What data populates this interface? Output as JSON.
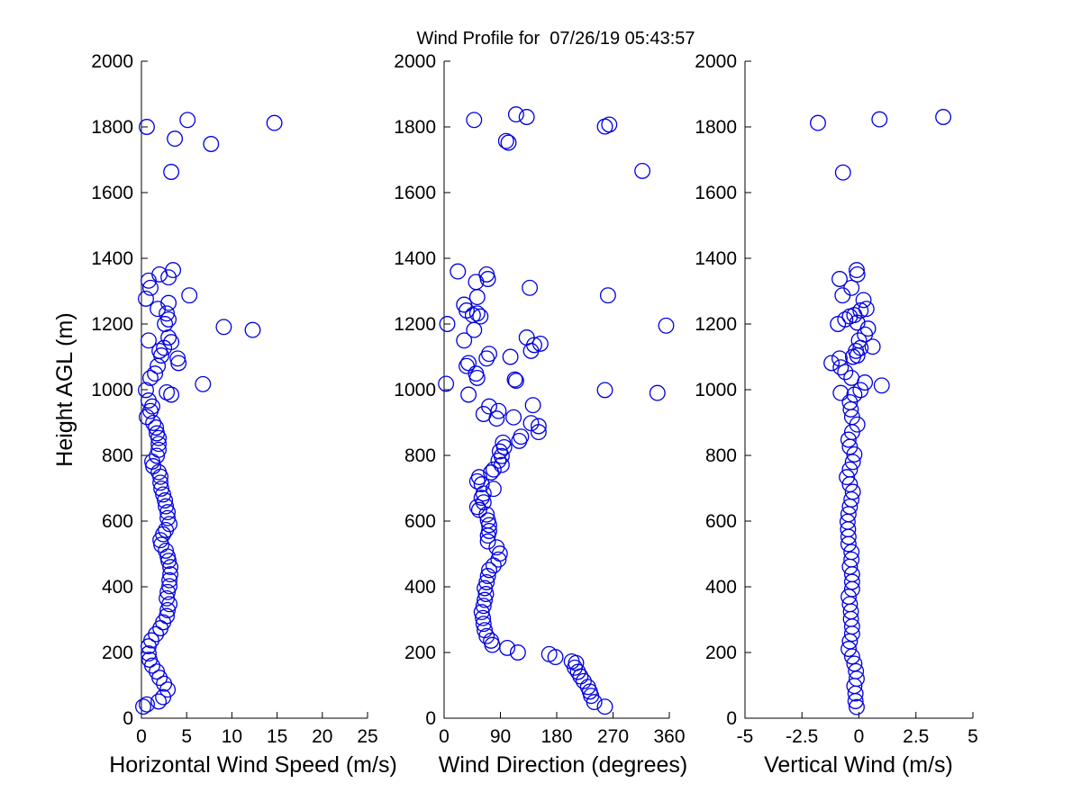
{
  "chart_data": {
    "type": "scatter",
    "title": "Wind Profile for  07/26/19 05:43:57",
    "ylabel": "Height AGL (m)",
    "ylim": [
      0,
      2000
    ],
    "yticks": [
      0,
      200,
      400,
      600,
      800,
      1000,
      1200,
      1400,
      1600,
      1800,
      2000
    ],
    "grid": false,
    "legend": "none",
    "marker": {
      "shape": "open-circle",
      "color": "#0000e0",
      "radius": 8.3
    },
    "panels": [
      {
        "xlabel": "Horizontal Wind Speed (m/s)",
        "xlim": [
          0,
          25
        ],
        "xticks": [
          0,
          5,
          10,
          15,
          20,
          25
        ],
        "points": [
          [
            0.2,
            35
          ],
          [
            0.6,
            42
          ],
          [
            1.9,
            51
          ],
          [
            2.4,
            64
          ],
          [
            2.9,
            87
          ],
          [
            2.5,
            105
          ],
          [
            2.0,
            123
          ],
          [
            1.7,
            142
          ],
          [
            1.2,
            160
          ],
          [
            0.9,
            178
          ],
          [
            0.8,
            197
          ],
          [
            0.8,
            219
          ],
          [
            1.1,
            237
          ],
          [
            1.6,
            256
          ],
          [
            2.1,
            274
          ],
          [
            2.4,
            292
          ],
          [
            2.8,
            311
          ],
          [
            2.9,
            329
          ],
          [
            3.1,
            347
          ],
          [
            2.8,
            365
          ],
          [
            2.9,
            384
          ],
          [
            3.1,
            402
          ],
          [
            3.1,
            420
          ],
          [
            3.2,
            438
          ],
          [
            3.2,
            460
          ],
          [
            3.0,
            479
          ],
          [
            2.9,
            492
          ],
          [
            2.7,
            510
          ],
          [
            2.2,
            528
          ],
          [
            2.1,
            542
          ],
          [
            2.4,
            560
          ],
          [
            2.7,
            573
          ],
          [
            3.1,
            591
          ],
          [
            2.9,
            609
          ],
          [
            2.9,
            627
          ],
          [
            2.7,
            645
          ],
          [
            2.6,
            663
          ],
          [
            2.4,
            681
          ],
          [
            2.2,
            699
          ],
          [
            2.1,
            717
          ],
          [
            2.1,
            735
          ],
          [
            1.9,
            749
          ],
          [
            1.3,
            767
          ],
          [
            1.2,
            781
          ],
          [
            1.7,
            799
          ],
          [
            1.9,
            817
          ],
          [
            1.9,
            835
          ],
          [
            1.9,
            853
          ],
          [
            1.7,
            867
          ],
          [
            1.6,
            885
          ],
          [
            1.3,
            899
          ],
          [
            0.6,
            917
          ],
          [
            1.0,
            935
          ],
          [
            1.2,
            949
          ],
          [
            0.8,
            967
          ],
          [
            3.3,
            985
          ],
          [
            2.8,
            992
          ],
          [
            0.5,
            999
          ],
          [
            6.8,
            1017
          ],
          [
            1.0,
            1036
          ],
          [
            1.5,
            1049
          ],
          [
            1.8,
            1072
          ],
          [
            4.1,
            1081
          ],
          [
            4.0,
            1095
          ],
          [
            2.2,
            1104
          ],
          [
            2.0,
            1118
          ],
          [
            2.5,
            1127
          ],
          [
            3.3,
            1145
          ],
          [
            0.8,
            1150
          ],
          [
            3.0,
            1159
          ],
          [
            12.3,
            1182
          ],
          [
            9.1,
            1191
          ],
          [
            2.6,
            1200
          ],
          [
            3.0,
            1214
          ],
          [
            2.8,
            1232
          ],
          [
            1.8,
            1246
          ],
          [
            3.0,
            1264
          ],
          [
            0.5,
            1277
          ],
          [
            5.3,
            1287
          ],
          [
            1.0,
            1310
          ],
          [
            0.8,
            1332
          ],
          [
            3.0,
            1342
          ],
          [
            2.0,
            1351
          ],
          [
            3.5,
            1364
          ],
          [
            3.3,
            1663
          ],
          [
            7.7,
            1748
          ],
          [
            3.7,
            1764
          ],
          [
            0.6,
            1800
          ],
          [
            14.7,
            1812
          ],
          [
            5.1,
            1821
          ]
        ]
      },
      {
        "xlabel": "Wind Direction (degrees)",
        "xlim": [
          0,
          360
        ],
        "xticks": [
          0,
          90,
          180,
          270,
          360
        ],
        "points": [
          [
            257,
            35
          ],
          [
            240,
            49
          ],
          [
            235,
            68
          ],
          [
            233,
            81
          ],
          [
            230,
            95
          ],
          [
            223,
            113
          ],
          [
            218,
            127
          ],
          [
            214,
            141
          ],
          [
            209,
            154
          ],
          [
            211,
            168
          ],
          [
            204,
            173
          ],
          [
            178,
            186
          ],
          [
            168,
            195
          ],
          [
            118,
            200
          ],
          [
            101,
            214
          ],
          [
            77,
            223
          ],
          [
            75,
            236
          ],
          [
            68,
            250
          ],
          [
            65,
            268
          ],
          [
            63,
            287
          ],
          [
            62,
            305
          ],
          [
            60,
            323
          ],
          [
            63,
            342
          ],
          [
            65,
            360
          ],
          [
            67,
            378
          ],
          [
            65,
            396
          ],
          [
            68,
            414
          ],
          [
            70,
            433
          ],
          [
            72,
            451
          ],
          [
            79,
            465
          ],
          [
            87,
            483
          ],
          [
            89,
            501
          ],
          [
            84,
            520
          ],
          [
            70,
            538
          ],
          [
            70,
            556
          ],
          [
            72,
            570
          ],
          [
            72,
            588
          ],
          [
            70,
            602
          ],
          [
            68,
            620
          ],
          [
            56,
            634
          ],
          [
            53,
            643
          ],
          [
            63,
            657
          ],
          [
            60,
            671
          ],
          [
            63,
            684
          ],
          [
            79,
            698
          ],
          [
            60,
            712
          ],
          [
            53,
            721
          ],
          [
            56,
            734
          ],
          [
            75,
            748
          ],
          [
            79,
            757
          ],
          [
            92,
            771
          ],
          [
            87,
            784
          ],
          [
            92,
            798
          ],
          [
            89,
            812
          ],
          [
            96,
            825
          ],
          [
            94,
            839
          ],
          [
            120,
            844
          ],
          [
            123,
            857
          ],
          [
            151,
            871
          ],
          [
            151,
            889
          ],
          [
            139,
            898
          ],
          [
            84,
            912
          ],
          [
            111,
            916
          ],
          [
            63,
            926
          ],
          [
            87,
            935
          ],
          [
            72,
            949
          ],
          [
            142,
            953
          ],
          [
            39,
            985
          ],
          [
            341,
            990
          ],
          [
            257,
            999
          ],
          [
            3,
            1018
          ],
          [
            115,
            1027
          ],
          [
            113,
            1031
          ],
          [
            53,
            1036
          ],
          [
            51,
            1049
          ],
          [
            36,
            1072
          ],
          [
            39,
            1081
          ],
          [
            68,
            1095
          ],
          [
            106,
            1100
          ],
          [
            72,
            1109
          ],
          [
            139,
            1118
          ],
          [
            144,
            1136
          ],
          [
            154,
            1140
          ],
          [
            32,
            1150
          ],
          [
            132,
            1159
          ],
          [
            48,
            1182
          ],
          [
            355,
            1195
          ],
          [
            5,
            1200
          ],
          [
            58,
            1223
          ],
          [
            46,
            1227
          ],
          [
            53,
            1232
          ],
          [
            36,
            1241
          ],
          [
            32,
            1259
          ],
          [
            53,
            1282
          ],
          [
            262,
            1287
          ],
          [
            137,
            1310
          ],
          [
            51,
            1328
          ],
          [
            70,
            1337
          ],
          [
            68,
            1351
          ],
          [
            22,
            1360
          ],
          [
            317,
            1666
          ],
          [
            103,
            1752
          ],
          [
            99,
            1757
          ],
          [
            257,
            1801
          ],
          [
            264,
            1807
          ],
          [
            48,
            1821
          ],
          [
            132,
            1830
          ],
          [
            115,
            1838
          ]
        ]
      },
      {
        "xlabel": "Vertical Wind (m/s)",
        "xlim": [
          -5,
          5
        ],
        "xticks": [
          -5,
          -2.5,
          0,
          2.5,
          5
        ],
        "points": [
          [
            -0.1,
            34
          ],
          [
            -0.15,
            52
          ],
          [
            -0.15,
            75
          ],
          [
            -0.2,
            98
          ],
          [
            -0.1,
            120
          ],
          [
            -0.13,
            143
          ],
          [
            -0.2,
            166
          ],
          [
            -0.3,
            188
          ],
          [
            -0.45,
            211
          ],
          [
            -0.4,
            234
          ],
          [
            -0.3,
            257
          ],
          [
            -0.3,
            279
          ],
          [
            -0.35,
            302
          ],
          [
            -0.35,
            325
          ],
          [
            -0.4,
            347
          ],
          [
            -0.45,
            370
          ],
          [
            -0.3,
            393
          ],
          [
            -0.3,
            415
          ],
          [
            -0.3,
            438
          ],
          [
            -0.4,
            461
          ],
          [
            -0.33,
            483
          ],
          [
            -0.33,
            506
          ],
          [
            -0.46,
            530
          ],
          [
            -0.46,
            552
          ],
          [
            -0.48,
            575
          ],
          [
            -0.5,
            598
          ],
          [
            -0.46,
            621
          ],
          [
            -0.4,
            644
          ],
          [
            -0.33,
            666
          ],
          [
            -0.27,
            689
          ],
          [
            -0.4,
            712
          ],
          [
            -0.53,
            734
          ],
          [
            -0.4,
            757
          ],
          [
            -0.27,
            780
          ],
          [
            -0.2,
            803
          ],
          [
            -0.4,
            826
          ],
          [
            -0.46,
            848
          ],
          [
            -0.3,
            871
          ],
          [
            -0.07,
            894
          ],
          [
            -0.3,
            917
          ],
          [
            -0.36,
            940
          ],
          [
            -0.4,
            962
          ],
          [
            -0.2,
            985
          ],
          [
            -0.8,
            990
          ],
          [
            0.07,
            999
          ],
          [
            1.0,
            1013
          ],
          [
            0.26,
            1022
          ],
          [
            -0.33,
            1036
          ],
          [
            -0.6,
            1054
          ],
          [
            -0.8,
            1068
          ],
          [
            -1.2,
            1081
          ],
          [
            -0.85,
            1095
          ],
          [
            -0.26,
            1100
          ],
          [
            -0.07,
            1104
          ],
          [
            -0.13,
            1118
          ],
          [
            0.07,
            1127
          ],
          [
            0.6,
            1131
          ],
          [
            0.0,
            1150
          ],
          [
            0.26,
            1168
          ],
          [
            0.4,
            1186
          ],
          [
            -0.92,
            1200
          ],
          [
            -0.07,
            1204
          ],
          [
            -0.6,
            1214
          ],
          [
            -0.4,
            1223
          ],
          [
            -0.2,
            1227
          ],
          [
            0.07,
            1241
          ],
          [
            0.33,
            1246
          ],
          [
            0.2,
            1273
          ],
          [
            -0.72,
            1287
          ],
          [
            -0.33,
            1310
          ],
          [
            -0.85,
            1337
          ],
          [
            -0.07,
            1351
          ],
          [
            -0.1,
            1364
          ],
          [
            -0.7,
            1661
          ],
          [
            -1.8,
            1812
          ],
          [
            0.9,
            1823
          ],
          [
            3.7,
            1830
          ]
        ]
      }
    ]
  }
}
